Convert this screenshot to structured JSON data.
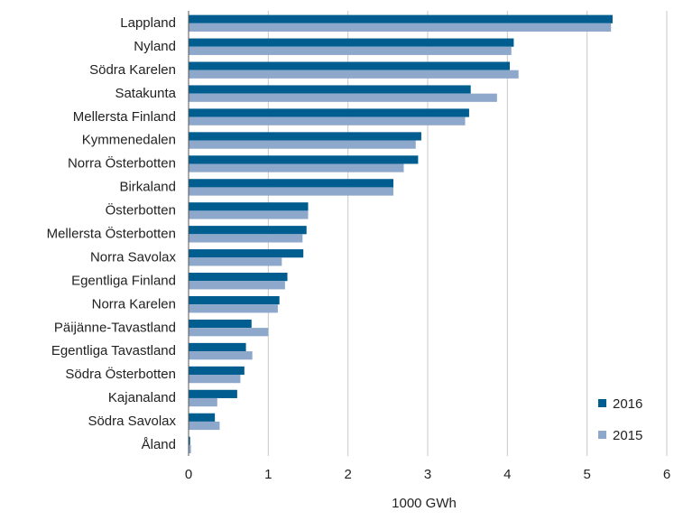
{
  "chart_data": {
    "type": "bar",
    "orientation": "horizontal",
    "title": "",
    "xlabel": "1000 GWh",
    "ylabel": "",
    "xlim": [
      0,
      6
    ],
    "xticks": [
      0,
      1,
      2,
      3,
      4,
      5,
      6
    ],
    "grid": "vertical",
    "legend_position": "bottom-right",
    "categories": [
      "Lappland",
      "Nyland",
      "Södra Karelen",
      "Satakunta",
      "Mellersta Finland",
      "Kymmenedalen",
      "Norra Österbotten",
      "Birkaland",
      "Österbotten",
      "Mellersta Österbotten",
      "Norra Savolax",
      "Egentliga Finland",
      "Norra Karelen",
      "Päijänne-Tavastland",
      "Egentliga Tavastland",
      "Södra Österbotten",
      "Kajanaland",
      "Södra Savolax",
      "Åland"
    ],
    "series": [
      {
        "name": "2016",
        "color": "#005d8f",
        "values": [
          5.32,
          4.08,
          4.03,
          3.54,
          3.52,
          2.92,
          2.88,
          2.57,
          1.5,
          1.48,
          1.44,
          1.24,
          1.14,
          0.79,
          0.72,
          0.7,
          0.61,
          0.33,
          0.02
        ]
      },
      {
        "name": "2015",
        "color": "#8ea8cc",
        "values": [
          5.3,
          4.05,
          4.14,
          3.87,
          3.47,
          2.85,
          2.7,
          2.57,
          1.5,
          1.43,
          1.17,
          1.21,
          1.12,
          1.0,
          0.8,
          0.65,
          0.36,
          0.39,
          0.03
        ]
      }
    ]
  }
}
